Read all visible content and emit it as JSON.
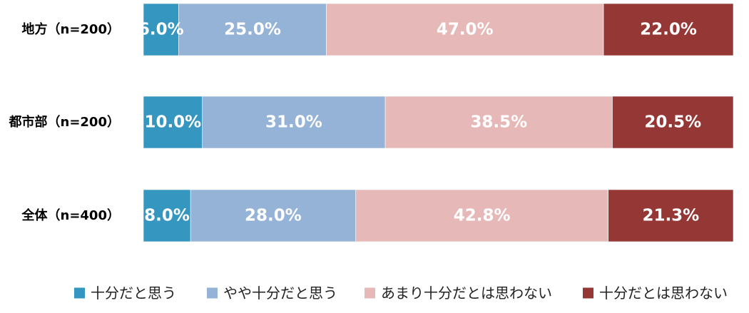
{
  "chart_data": {
    "type": "bar",
    "orientation": "horizontal",
    "stacked": true,
    "normalized": true,
    "title": "",
    "xlabel": "",
    "ylabel": "",
    "xlim": [
      0,
      100
    ],
    "grid": false,
    "legend_position": "bottom",
    "categories": [
      "地方（n=200）",
      "都市部（n=200）",
      "全体（n=400）"
    ],
    "series": [
      {
        "name": "十分だと思う",
        "color": "#3596c0",
        "values": [
          6.0,
          10.0,
          8.0
        ],
        "labels": [
          "6.0%",
          "10.0%",
          "8.0%"
        ]
      },
      {
        "name": "やや十分だと思う",
        "color": "#95b3d7",
        "values": [
          25.0,
          31.0,
          28.0
        ],
        "labels": [
          "25.0%",
          "31.0%",
          "28.0%"
        ]
      },
      {
        "name": "あまり十分だとは思わない",
        "color": "#e6b9b8",
        "values": [
          47.0,
          38.5,
          42.8
        ],
        "labels": [
          "47.0%",
          "38.5%",
          "42.8%"
        ]
      },
      {
        "name": "十分だとは思わない",
        "color": "#953735",
        "values": [
          22.0,
          20.5,
          21.3
        ],
        "labels": [
          "22.0%",
          "20.5%",
          "21.3%"
        ]
      }
    ]
  }
}
